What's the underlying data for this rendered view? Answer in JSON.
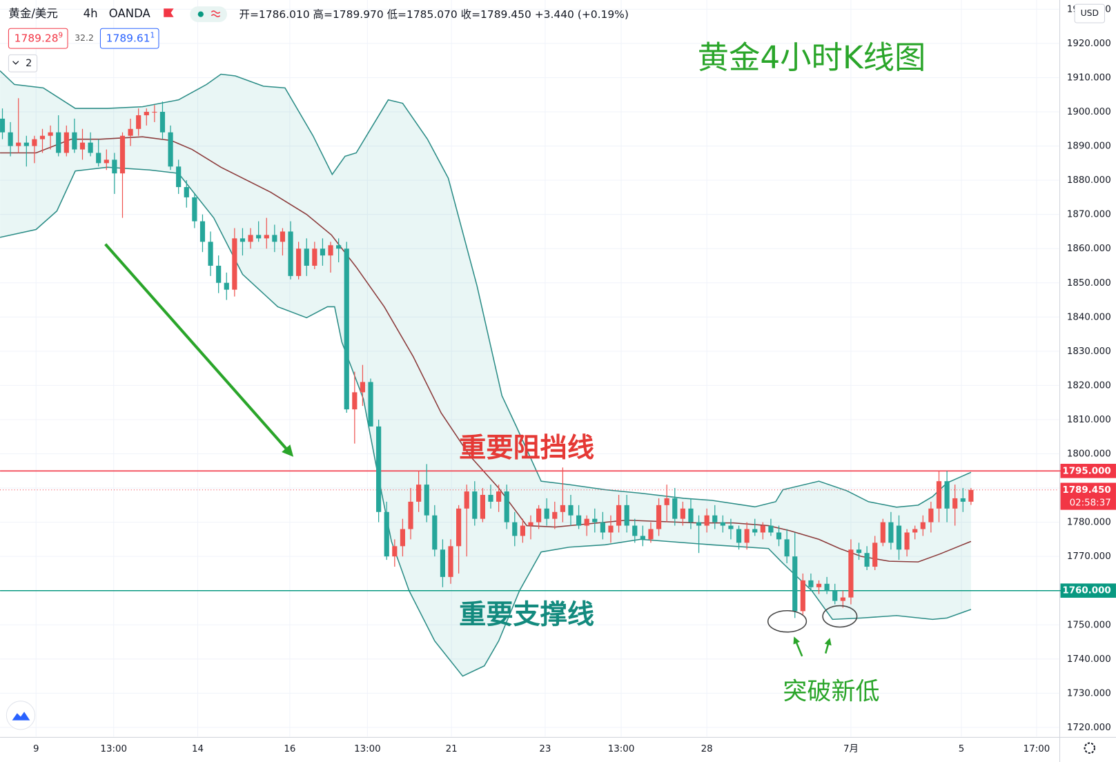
{
  "header": {
    "symbol": "黄金/美元",
    "interval": "4h",
    "source": "OANDA",
    "ohlc": "开=1786.010 高=1789.970 低=1785.070 收=1789.450 +3.440 (+0.19%)",
    "sell_price": "1789.28",
    "sell_pip": "9",
    "spread": "32.2",
    "buy_price": "1789.61",
    "buy_pip": "1",
    "indicators": "2",
    "currency": "USD"
  },
  "chart_data": {
    "type": "candlestick",
    "title": "黄金4小时K线图",
    "annotations": [
      {
        "text": "重要阻挡线",
        "color": "#e53935"
      },
      {
        "text": "重要支撑线",
        "color": "#138a7e"
      },
      {
        "text": "突破新低",
        "color": "#2aa52a"
      }
    ],
    "up_color": "#ef5350",
    "down_color": "#26a69a",
    "grid": true,
    "xlim": [
      -0.3,
      132
    ],
    "ylim": [
      1717.3,
      1932.7
    ],
    "xticks": [
      {
        "value": 4.2,
        "label": "9"
      },
      {
        "value": 13.9,
        "label": "13:00"
      },
      {
        "value": 24.4,
        "label": "14"
      },
      {
        "value": 35.9,
        "label": "16"
      },
      {
        "value": 45.6,
        "label": "13:00"
      },
      {
        "value": 56.1,
        "label": "21"
      },
      {
        "value": 67.8,
        "label": "23"
      },
      {
        "value": 77.3,
        "label": "13:00"
      },
      {
        "value": 88,
        "label": "28"
      },
      {
        "value": 106,
        "label": "7月"
      },
      {
        "value": 119.8,
        "label": "5"
      },
      {
        "value": 129.2,
        "label": "17:00"
      }
    ],
    "yticks": [
      {
        "value": 1930,
        "label": "1930.000"
      },
      {
        "value": 1920,
        "label": "1920.000"
      },
      {
        "value": 1910,
        "label": "1910.000"
      },
      {
        "value": 1900,
        "label": "1900.000"
      },
      {
        "value": 1890,
        "label": "1890.000"
      },
      {
        "value": 1880,
        "label": "1880.000"
      },
      {
        "value": 1870,
        "label": "1870.000"
      },
      {
        "value": 1860,
        "label": "1860.000"
      },
      {
        "value": 1850,
        "label": "1850.000"
      },
      {
        "value": 1840,
        "label": "1840.000"
      },
      {
        "value": 1830,
        "label": "1830.000"
      },
      {
        "value": 1820,
        "label": "1820.000"
      },
      {
        "value": 1810,
        "label": "1810.000"
      },
      {
        "value": 1800,
        "label": "1800.000"
      },
      {
        "value": 1790,
        "label": "1790.000"
      },
      {
        "value": 1780,
        "label": "1780.000"
      },
      {
        "value": 1770,
        "label": "1770.000"
      },
      {
        "value": 1760,
        "label": "1760.000"
      },
      {
        "value": 1750,
        "label": "1750.000"
      },
      {
        "value": 1740,
        "label": "1740.000"
      },
      {
        "value": 1730,
        "label": "1730.000"
      },
      {
        "value": 1720,
        "label": "1720.000"
      }
    ],
    "open": [
      1898,
      1894,
      1890,
      1891,
      1890,
      1892,
      1893,
      1894,
      1888,
      1894,
      1889,
      1891,
      1888,
      1885,
      1886,
      1882,
      1893,
      1895,
      1899,
      1900,
      1900,
      1894,
      1884,
      1878,
      1875,
      1868,
      1862,
      1855,
      1850,
      1848,
      1863,
      1862,
      1864,
      1863,
      1864,
      1862,
      1865,
      1852,
      1860,
      1855,
      1860,
      1858,
      1861,
      1860,
      1813,
      1818,
      1821,
      1808,
      1783,
      1770,
      1773,
      1778,
      1786,
      1791,
      1782,
      1772,
      1764,
      1773,
      1784,
      1789,
      1781,
      1788,
      1786,
      1789,
      1780,
      1776,
      1779,
      1780,
      1784,
      1781,
      1783,
      1785,
      1782,
      1779,
      1781,
      1780,
      1777,
      1779,
      1785,
      1779,
      1776,
      1775,
      1778,
      1785,
      1787,
      1781,
      1784,
      1780,
      1779,
      1782,
      1780,
      1779,
      1778,
      1774,
      1778,
      1777,
      1779,
      1777,
      1775,
      1770,
      1754,
      1763,
      1761,
      1762,
      1760,
      1757,
      1758,
      1772,
      1771,
      1767,
      1774,
      1780,
      1779,
      1772,
      1777,
      1778,
      1780,
      1784,
      1792,
      1784,
      1787,
      1786.01
    ],
    "high": [
      1901,
      1897,
      1904,
      1893,
      1893,
      1895,
      1896,
      1899,
      1896,
      1898,
      1895,
      1894,
      1892,
      1889,
      1888,
      1894,
      1898,
      1901,
      1901,
      1902,
      1903,
      1896,
      1886,
      1880,
      1876,
      1870,
      1865,
      1858,
      1853,
      1866,
      1866,
      1866,
      1868,
      1869,
      1867,
      1866,
      1868,
      1862,
      1863,
      1862,
      1863,
      1862,
      1863,
      1862,
      1824,
      1826,
      1822,
      1810,
      1786,
      1775,
      1781,
      1790,
      1795,
      1797,
      1785,
      1775,
      1775,
      1785,
      1791,
      1792,
      1790,
      1791,
      1791,
      1791,
      1783,
      1781,
      1782,
      1785,
      1787,
      1786,
      1796,
      1788,
      1785,
      1782,
      1784,
      1783,
      1782,
      1788,
      1788,
      1781,
      1779,
      1780,
      1787,
      1791,
      1790,
      1786,
      1787,
      1782,
      1784,
      1785,
      1782,
      1781,
      1779,
      1780,
      1781,
      1780,
      1781,
      1779,
      1778,
      1777,
      1765,
      1765,
      1763,
      1764,
      1762,
      1760,
      1775,
      1774,
      1773,
      1776,
      1781,
      1783,
      1782,
      1778,
      1779,
      1782,
      1786,
      1795,
      1795,
      1791,
      1790,
      1789.97
    ],
    "low": [
      1892,
      1887,
      1888,
      1884,
      1885,
      1888,
      1889,
      1887,
      1887,
      1888,
      1886,
      1887,
      1884,
      1883,
      1876,
      1869,
      1890,
      1893,
      1896,
      1897,
      1892,
      1883,
      1876,
      1872,
      1866,
      1859,
      1852,
      1847,
      1845,
      1846,
      1858,
      1860,
      1862,
      1860,
      1859,
      1858,
      1851,
      1851,
      1852,
      1854,
      1855,
      1853,
      1856,
      1812,
      1803,
      1814,
      1808,
      1780,
      1769,
      1767,
      1770,
      1775,
      1783,
      1780,
      1770,
      1761,
      1762,
      1765,
      1770,
      1779,
      1780,
      1784,
      1783,
      1778,
      1773,
      1774,
      1775,
      1778,
      1779,
      1778,
      1780,
      1779,
      1778,
      1776,
      1777,
      1775,
      1774,
      1777,
      1777,
      1774,
      1773,
      1774,
      1776,
      1780,
      1779,
      1779,
      1778,
      1771,
      1777,
      1778,
      1777,
      1775,
      1772,
      1772,
      1776,
      1775,
      1776,
      1773,
      1768,
      1752,
      1753,
      1760,
      1759,
      1759,
      1756,
      1755,
      1756,
      1769,
      1766,
      1766,
      1773,
      1772,
      1769,
      1770,
      1775,
      1776,
      1777,
      1780,
      1780,
      1779,
      1783,
      1785.07
    ],
    "close": [
      1894,
      1890,
      1891,
      1890,
      1892,
      1893,
      1894,
      1888,
      1894,
      1889,
      1891,
      1888,
      1885,
      1886,
      1882,
      1893,
      1895,
      1899,
      1900,
      1900,
      1894,
      1884,
      1878,
      1875,
      1868,
      1862,
      1855,
      1850,
      1848,
      1863,
      1862,
      1864,
      1863,
      1864,
      1862,
      1865,
      1852,
      1860,
      1855,
      1860,
      1858,
      1861,
      1860,
      1813,
      1818,
      1821,
      1808,
      1783,
      1770,
      1773,
      1778,
      1786,
      1791,
      1782,
      1772,
      1764,
      1773,
      1784,
      1789,
      1781,
      1788,
      1786,
      1789,
      1780,
      1776,
      1779,
      1780,
      1784,
      1781,
      1783,
      1785,
      1782,
      1779,
      1781,
      1780,
      1777,
      1779,
      1785,
      1779,
      1776,
      1775,
      1778,
      1785,
      1787,
      1781,
      1784,
      1780,
      1779,
      1782,
      1780,
      1779,
      1778,
      1774,
      1778,
      1777,
      1779,
      1777,
      1775,
      1770,
      1754,
      1763,
      1761,
      1762,
      1760,
      1757,
      1758,
      1772,
      1771,
      1767,
      1774,
      1780,
      1774,
      1772,
      1777,
      1778,
      1780,
      1784,
      1792,
      1784,
      1787,
      1786,
      1789.45
    ],
    "band_fill": "#26a69a",
    "overlays": [
      {
        "color": "#2a8c86",
        "x": [
          -0.3,
          1.5,
          5.1,
          9.1,
          13.1,
          17.5,
          22,
          25.5,
          27.3,
          29.1,
          32.6,
          35.3,
          38.8,
          41.2,
          42.8,
          44.2,
          46,
          48.2,
          50,
          53.1,
          55.7,
          59.3,
          62.4,
          64.2,
          67.3,
          70.8,
          75.3,
          79.7,
          85.1,
          88.6,
          94,
          96.6,
          97.5,
          102,
          105.5,
          108.2,
          111.7,
          114.4,
          116.2,
          118,
          121
        ],
        "values": [
          1912,
          1908,
          1907,
          1901,
          1901,
          1901.5,
          1903.5,
          1908,
          1911,
          1910.5,
          1907.5,
          1907,
          1893,
          1881.7,
          1887,
          1888,
          1895,
          1903.5,
          1902.5,
          1892,
          1880.6,
          1849,
          1817,
          1808,
          1792,
          1791,
          1789.5,
          1788.5,
          1787,
          1786.4,
          1784.5,
          1786,
          1789.5,
          1792,
          1789.2,
          1786,
          1784.4,
          1785,
          1787.5,
          1791.5,
          1794.6
        ]
      },
      {
        "color": "#8b3a3a",
        "x": [
          -0.3,
          4.2,
          8.6,
          12.2,
          17.5,
          21.1,
          23.7,
          27.3,
          33.5,
          38,
          41.1,
          44.2,
          47.7,
          51.3,
          54.8,
          58.4,
          62,
          65.5,
          69.1,
          73.5,
          78,
          82.4,
          86.8,
          91.3,
          95.7,
          98.4,
          102,
          104.6,
          107.3,
          110.8,
          114.4,
          117.1,
          121
        ],
        "values": [
          1888,
          1888,
          1892,
          1892,
          1892.7,
          1891.6,
          1889,
          1883.8,
          1876.5,
          1870,
          1864,
          1854.6,
          1843,
          1828.5,
          1812,
          1799.4,
          1790,
          1779,
          1778.6,
          1779.6,
          1780.6,
          1780.2,
          1779.8,
          1779.8,
          1779,
          1777.5,
          1775,
          1772.3,
          1770,
          1768.6,
          1768.4,
          1770.7,
          1774.4
        ]
      },
      {
        "color": "#2a8c86",
        "x": [
          -0.3,
          4.2,
          6.8,
          9.1,
          13.1,
          18.4,
          22,
          26.4,
          30,
          34.4,
          38,
          40.6,
          41.5,
          42.4,
          45.1,
          46.8,
          48.6,
          50.8,
          54,
          57.5,
          60.2,
          62,
          64.6,
          67.3,
          70.8,
          75.3,
          79.7,
          88.6,
          95.7,
          97.5,
          101.1,
          103.7,
          107.3,
          111.7,
          116.2,
          118,
          121
        ],
        "values": [
          1863.3,
          1865.6,
          1871,
          1882.7,
          1883.8,
          1883,
          1882,
          1869,
          1852.5,
          1843,
          1839.8,
          1843,
          1843,
          1832.7,
          1816,
          1795.2,
          1774.4,
          1760,
          1745.3,
          1735,
          1738,
          1745.3,
          1760,
          1771.3,
          1772.7,
          1773.4,
          1775,
          1773.4,
          1772.3,
          1768,
          1760,
          1751.6,
          1752,
          1752.7,
          1751.6,
          1752,
          1754.5
        ]
      }
    ],
    "price_lines": [
      {
        "value": 1795,
        "label": "1795.000",
        "color": "#f23645"
      },
      {
        "value": 1760,
        "label": "1760.000",
        "color": "#089981"
      }
    ],
    "last_price": {
      "value": 1789.45,
      "label": "1789.450",
      "countdown": "02:58:37",
      "color": "#f23645"
    }
  }
}
